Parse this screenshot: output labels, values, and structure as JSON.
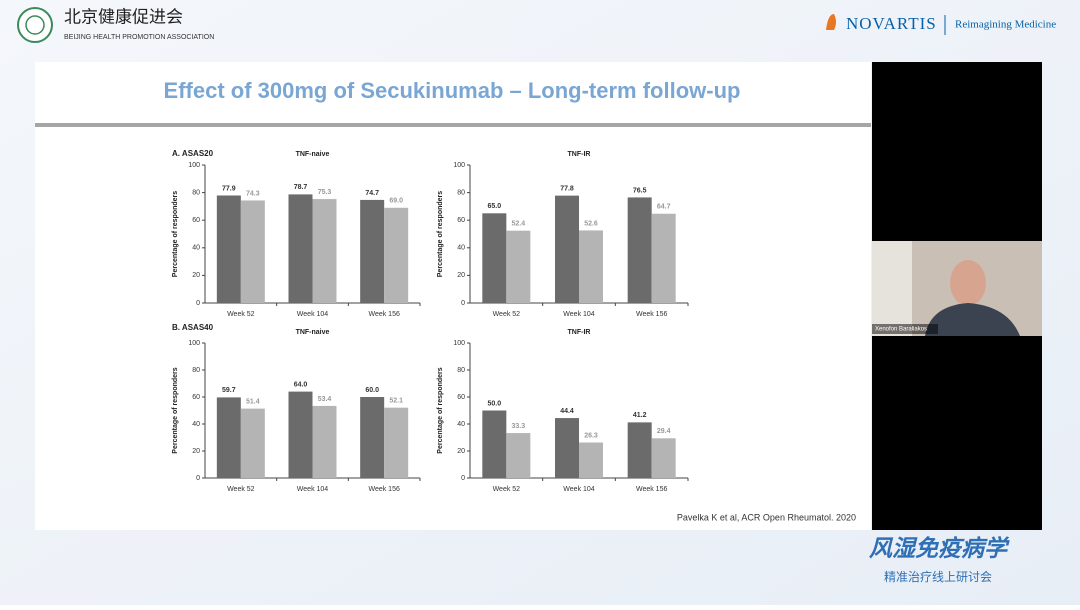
{
  "header": {
    "org_cn": "北京健康促进会",
    "org_en": "BEIJING HEALTH PROMOTION ASSOCIATION",
    "brand": "NOVARTIS",
    "tagline": "Reimagining Medicine"
  },
  "slide": {
    "title": "Effect of 300mg of Secukinumab – Long-term follow-up",
    "panel_a": "A. ASAS20",
    "panel_b": "B. ASAS40",
    "citation": "Pavelka K et al, ACR Open Rheumatol. 2020"
  },
  "video": {
    "participant": "Xenofon Baraliakos"
  },
  "footer": {
    "title": "风湿免疫病学",
    "subtitle": "精准治疗线上研讨会"
  },
  "chart_data": [
    {
      "type": "bar",
      "title": "TNF-naive",
      "y_label": "Percentage of responders",
      "categories": [
        "Week 52",
        "Week 104",
        "Week 156"
      ],
      "series": [
        {
          "color": "#6b6b6b",
          "values": [
            77.9,
            78.7,
            74.7
          ],
          "value_labels": [
            "77.9",
            "78.7",
            "74.7"
          ]
        },
        {
          "color": "#b4b4b4",
          "values": [
            74.3,
            75.3,
            69.0
          ],
          "value_labels": [
            "74.3",
            "75.3",
            "69.0"
          ]
        }
      ],
      "ylim": [
        0,
        100
      ],
      "yticks": [
        0,
        20,
        40,
        60,
        80,
        100
      ]
    },
    {
      "type": "bar",
      "title": "TNF-IR",
      "y_label": "Percentage of responders",
      "categories": [
        "Week 52",
        "Week 104",
        "Week 156"
      ],
      "series": [
        {
          "color": "#6b6b6b",
          "values": [
            65.0,
            77.8,
            76.5
          ],
          "value_labels": [
            "65.0",
            "77.8",
            "76.5"
          ]
        },
        {
          "color": "#b4b4b4",
          "values": [
            52.4,
            52.6,
            64.7
          ],
          "value_labels": [
            "52.4",
            "52.6",
            "64.7"
          ]
        }
      ],
      "ylim": [
        0,
        100
      ],
      "yticks": [
        0,
        20,
        40,
        60,
        80,
        100
      ]
    },
    {
      "type": "bar",
      "title": "TNF-naive",
      "y_label": "Percentage of responders",
      "categories": [
        "Week 52",
        "Week 104",
        "Week 156"
      ],
      "series": [
        {
          "color": "#6b6b6b",
          "values": [
            59.7,
            64.0,
            60.0
          ],
          "value_labels": [
            "59.7",
            "64.0",
            "60.0"
          ]
        },
        {
          "color": "#b4b4b4",
          "values": [
            51.4,
            53.4,
            52.1
          ],
          "value_labels": [
            "51.4",
            "53.4",
            "52.1"
          ]
        }
      ],
      "ylim": [
        0,
        100
      ],
      "yticks": [
        0,
        20,
        40,
        60,
        80,
        100
      ]
    },
    {
      "type": "bar",
      "title": "TNF-IR",
      "y_label": "Percentage of responders",
      "categories": [
        "Week 52",
        "Week 104",
        "Week 156"
      ],
      "series": [
        {
          "color": "#6b6b6b",
          "values": [
            50.0,
            44.4,
            41.2
          ],
          "value_labels": [
            "50.0",
            "44.4",
            "41.2"
          ]
        },
        {
          "color": "#b4b4b4",
          "values": [
            33.3,
            26.3,
            29.4
          ],
          "value_labels": [
            "33.3",
            "26.3",
            "29.4"
          ]
        }
      ],
      "ylim": [
        0,
        100
      ],
      "yticks": [
        0,
        20,
        40,
        60,
        80,
        100
      ]
    }
  ]
}
